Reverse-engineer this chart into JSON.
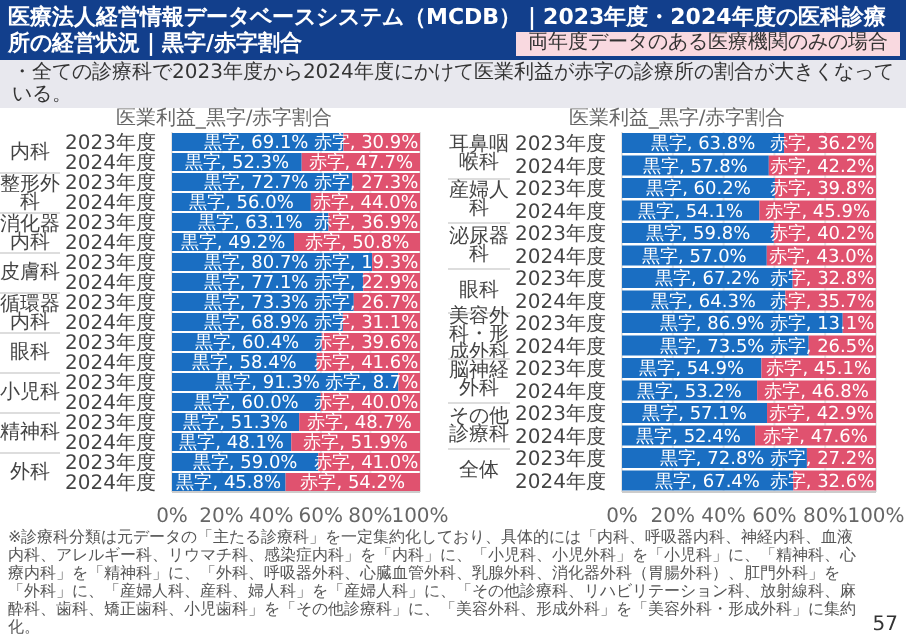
{
  "chart_data": [
    {
      "type": "other",
      "title": "医療法人経営情報データベースシステム（MCDB）｜2023年度・2024年度の医科診療所の経営状況｜黒字/赤字割合",
      "annotations": [
        "両年度データのある医療機関のみの場合",
        "・全ての診療科で2023年度から2024年度にかけて医業利益が赤字の診療所の割合が大きくなっている。",
        "※診療科分類は元データの「主たる診療科」を一定集約化しており、具体的には「内科、呼吸器内科、神経内科、血液内科、アレルギー科、リウマチ科、感染症内科」を「内科」に、「小児科、小児外科」を「小児科」に、「精神科、心療内科」を「精神科」に、「外科、呼吸器外科、心臓血管外科、乳腺外科、消化器外科（胃腸外科）、肛門外科」を「外科」に、「産婦人科、産科、婦人科」を「産婦人科」に、「その他診療科、リハビリテーション科、放射線科、麻酔科、歯科、矯正歯科、小児歯科」を「その他診療科」に、「美容外科、形成外科」を「美容外科・形成外科」に集約化。",
        "57"
      ]
    },
    {
      "type": "bar",
      "orientation": "horizontal",
      "stacked": true,
      "title": "医業利益_黒字/赤字割合",
      "categories": [
        "2023年度",
        "2024年度",
        "2023年度",
        "2024年度",
        "2023年度",
        "2024年度",
        "2023年度",
        "2024年度",
        "2023年度",
        "2024年度",
        "2023年度",
        "2024年度",
        "2023年度",
        "2024年度",
        "2023年度",
        "2024年度",
        "2023年度",
        "2024年度"
      ],
      "annotations": [
        "内科",
        "整形外科",
        "消化器内科",
        "皮膚科",
        "循環器内科",
        "眼科",
        "小児科",
        "精神科",
        "外科"
      ],
      "series": [
        {
          "color": "#1a6ec2",
          "values": [
            69.1,
            52.3,
            72.7,
            56.0,
            63.1,
            49.2,
            80.7,
            77.1,
            73.3,
            68.9,
            60.4,
            58.4,
            91.3,
            60.0,
            51.3,
            48.1,
            59.0,
            45.8
          ],
          "value_labels": [
            "黒字, 69.1%",
            "黒字, 52.3%",
            "黒字, 72.7%",
            "黒字, 56.0%",
            "黒字, 63.1%",
            "黒字, 49.2%",
            "黒字, 80.7%",
            "黒字, 77.1%",
            "黒字, 73.3%",
            "黒字, 68.9%",
            "黒字, 60.4%",
            "黒字, 58.4%",
            "黒字, 91.3%",
            "黒字, 60.0%",
            "黒字, 51.3%",
            "黒字, 48.1%",
            "黒字, 59.0%",
            "黒字, 45.8%"
          ]
        },
        {
          "color": "#e0526f",
          "values": [
            30.9,
            47.7,
            27.3,
            44.0,
            36.9,
            50.8,
            19.3,
            22.9,
            26.7,
            31.1,
            39.6,
            41.6,
            8.7,
            40.0,
            48.7,
            51.9,
            41.0,
            54.2
          ],
          "value_labels": [
            "赤字, 30.9%",
            "赤字, 47.7%",
            "赤字, 27.3%",
            "赤字, 44.0%",
            "赤字, 36.9%",
            "赤字, 50.8%",
            "赤字, 19.3%",
            "赤字, 22.9%",
            "赤字, 26.7%",
            "赤字, 31.1%",
            "赤字, 39.6%",
            "赤字, 41.6%",
            "赤字, 8.7%",
            "赤字, 40.0%",
            "赤字, 48.7%",
            "赤字, 51.9%",
            "赤字, 41.0%",
            "赤字, 54.2%"
          ]
        }
      ],
      "xlim": [
        0,
        100
      ],
      "xticks": [
        {
          "value": 0,
          "label": "0%"
        },
        {
          "value": 20,
          "label": "20%"
        },
        {
          "value": 40,
          "label": "40%"
        },
        {
          "value": 60,
          "label": "60%"
        },
        {
          "value": 80,
          "label": "80%"
        },
        {
          "value": 100,
          "label": "100%"
        }
      ],
      "grid": "x"
    },
    {
      "type": "bar",
      "orientation": "horizontal",
      "stacked": true,
      "title": "医業利益_黒字/赤字割合",
      "categories": [
        "2023年度",
        "2024年度",
        "2023年度",
        "2024年度",
        "2023年度",
        "2024年度",
        "2023年度",
        "2024年度",
        "2023年度",
        "2024年度",
        "2023年度",
        "2024年度",
        "2023年度",
        "2024年度",
        "2023年度",
        "2024年度"
      ],
      "annotations": [
        "耳鼻咽喉科",
        "産婦人科",
        "泌尿器科",
        "眼科",
        "美容外科・形成外科",
        "脳神経外科",
        "その他診療科",
        "全体"
      ],
      "series": [
        {
          "color": "#1a6ec2",
          "values": [
            63.8,
            57.8,
            60.2,
            54.1,
            59.8,
            57.0,
            67.2,
            64.3,
            86.9,
            73.5,
            54.9,
            53.2,
            57.1,
            52.4,
            72.8,
            67.4
          ],
          "value_labels": [
            "黒字, 63.8%",
            "黒字, 57.8%",
            "黒字, 60.2%",
            "黒字, 54.1%",
            "黒字, 59.8%",
            "黒字, 57.0%",
            "黒字, 67.2%",
            "黒字, 64.3%",
            "黒字, 86.9%",
            "黒字, 73.5%",
            "黒字, 54.9%",
            "黒字, 53.2%",
            "黒字, 57.1%",
            "黒字, 52.4%",
            "黒字, 72.8%",
            "黒字, 67.4%"
          ]
        },
        {
          "color": "#e0526f",
          "values": [
            36.2,
            42.2,
            39.8,
            45.9,
            40.2,
            43.0,
            32.8,
            35.7,
            13.1,
            26.5,
            45.1,
            46.8,
            42.9,
            47.6,
            27.2,
            32.6
          ],
          "value_labels": [
            "赤字, 36.2%",
            "赤字, 42.2%",
            "赤字, 39.8%",
            "赤字, 45.9%",
            "赤字, 40.2%",
            "赤字, 43.0%",
            "赤字, 32.8%",
            "赤字, 35.7%",
            "赤字, 13.1%",
            "赤字, 26.5%",
            "赤字, 45.1%",
            "赤字, 46.8%",
            "赤字, 42.9%",
            "赤字, 47.6%",
            "赤字, 27.2%",
            "赤字, 32.6%"
          ]
        }
      ],
      "xlim": [
        0,
        100
      ],
      "xticks": [
        {
          "value": 0,
          "label": "0%"
        },
        {
          "value": 20,
          "label": "20%"
        },
        {
          "value": 40,
          "label": "40%"
        },
        {
          "value": 60,
          "label": "60%"
        },
        {
          "value": 80,
          "label": "80%"
        },
        {
          "value": 100,
          "label": "100%"
        }
      ],
      "grid": "x"
    }
  ]
}
